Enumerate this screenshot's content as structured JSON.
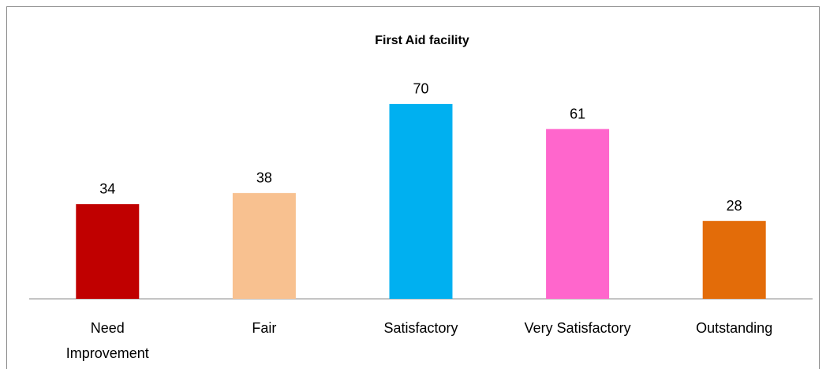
{
  "chart_data": {
    "type": "bar",
    "title": "First Aid facility",
    "categories": [
      "Need Improvement",
      "Fair",
      "Satisfactory",
      "Very Satisfactory",
      "Outstanding"
    ],
    "values": [
      34,
      38,
      70,
      61,
      28
    ],
    "colors": [
      "#c00000",
      "#f8c190",
      "#00b0f0",
      "#ff66cc",
      "#e36c09"
    ]
  }
}
